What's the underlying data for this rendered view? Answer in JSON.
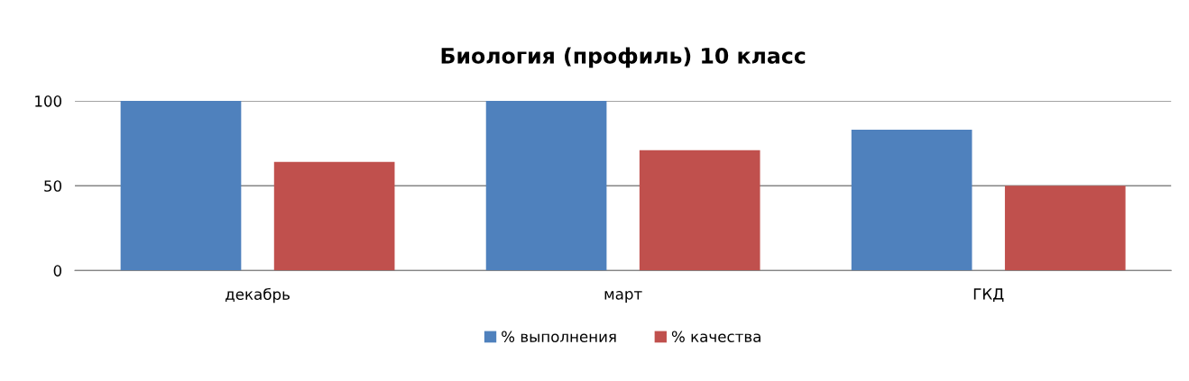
{
  "chart_data": {
    "type": "bar",
    "title": "Биология (профиль) 10 класс",
    "categories": [
      "декабрь",
      "март",
      "ГКД"
    ],
    "series": [
      {
        "name": "% выполнения",
        "color": "#4f81bd",
        "values": [
          100,
          100,
          83
        ]
      },
      {
        "name": "% качества",
        "color": "#c0504d",
        "values": [
          64,
          71,
          50
        ]
      }
    ],
    "ylim": [
      0,
      100
    ],
    "yticks": [
      0,
      50,
      100
    ],
    "grid": "y",
    "legend": "bottom"
  }
}
